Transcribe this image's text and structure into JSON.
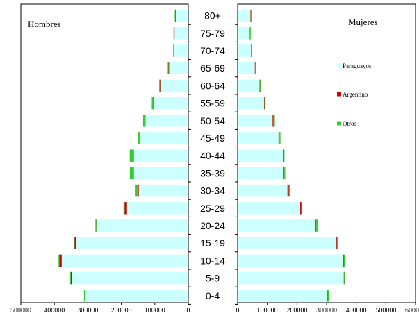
{
  "chart_data": {
    "type": "bar",
    "orientation": "horizontal",
    "layout": "population-pyramid",
    "categories": [
      "80+",
      "75-79",
      "70-74",
      "65-69",
      "60-64",
      "55-59",
      "50-54",
      "45-49",
      "40-44",
      "35-39",
      "30-34",
      "25-29",
      "20-24",
      "15-19",
      "10-14",
      "5-9",
      "0-4"
    ],
    "panels": [
      {
        "key": "men",
        "title": "Hombres",
        "axis_reversed": true,
        "xlim": [
          0,
          500000
        ],
        "ticks": [
          {
            "value": 500000,
            "label": "500000"
          },
          {
            "value": 400000,
            "label": "400000"
          },
          {
            "value": 300000,
            "label": "300000"
          },
          {
            "value": 200000,
            "label": "200000"
          },
          {
            "value": 100000,
            "label": "100000"
          },
          {
            "value": 0,
            "label": "0"
          }
        ],
        "series": [
          {
            "name": "Paraguayos",
            "color": "#ccffff",
            "values": [
              38000,
              42000,
              43000,
              58000,
              83000,
              103000,
              128000,
              143000,
              163000,
              163000,
              148000,
              183000,
              273000,
              336000,
              378000,
              348000,
              308000
            ]
          },
          {
            "name": "Argentino",
            "color": "#cc0000",
            "values": [
              800,
              800,
              800,
              1000,
              1500,
              1500,
              2000,
              2500,
              3000,
              3000,
              4000,
              7000,
              1500,
              3500,
              7000,
              3000,
              1000
            ]
          },
          {
            "name": "Otros",
            "color": "#33cc33",
            "values": [
              1500,
              1500,
              1500,
              2500,
              2500,
              4500,
              5000,
              5000,
              9000,
              8500,
              5500,
              3500,
              3000,
              2000,
              2500,
              2000,
              2500
            ]
          }
        ]
      },
      {
        "key": "women",
        "title": "Mujeres",
        "axis_reversed": false,
        "xlim": [
          0,
          600000
        ],
        "ticks": [
          {
            "value": 0,
            "label": "0"
          },
          {
            "value": 100000,
            "label": "100000"
          },
          {
            "value": 200000,
            "label": "200000"
          },
          {
            "value": 300000,
            "label": "300000"
          },
          {
            "value": 400000,
            "label": "400000"
          },
          {
            "value": 500000,
            "label": "500000"
          },
          {
            "value": 600000,
            "label": "600000"
          }
        ],
        "series": [
          {
            "name": "Paraguayos",
            "color": "#ccffff",
            "values": [
              43000,
              41000,
              45000,
              58000,
              74000,
              89000,
              118000,
              138000,
              153000,
              153000,
              168000,
              211000,
              263000,
              333000,
              356000,
              358000,
              303000
            ]
          },
          {
            "name": "Argentino",
            "color": "#cc0000",
            "values": [
              800,
              800,
              800,
              1000,
              1500,
              1500,
              3000,
              3000,
              2000,
              4500,
              5000,
              4000,
              2000,
              2000,
              1500,
              1000,
              1500
            ]
          },
          {
            "name": "Otros",
            "color": "#33cc33",
            "values": [
              4500,
              2500,
              2500,
              4000,
              3000,
              3500,
              4500,
              3500,
              3000,
              3000,
              3500,
              3000,
              4500,
              3500,
              3500,
              2500,
              4500
            ]
          }
        ]
      }
    ],
    "legend": {
      "placement": "right-panel",
      "items": [
        {
          "label": "Paraguayos",
          "color": "#ccffff"
        },
        {
          "label": "Argentino",
          "color": "#cc0000"
        },
        {
          "label": "Otros",
          "color": "#33cc33"
        }
      ]
    },
    "grid": false
  }
}
